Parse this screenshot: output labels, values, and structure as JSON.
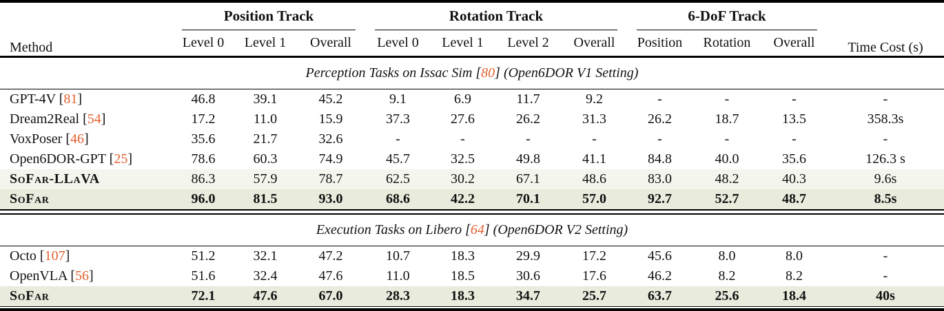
{
  "colors": {
    "citation": "#E4602F",
    "row_highlight_light": "#F4F5EC",
    "row_highlight_dark": "#E9EBDC",
    "rule": "#000000",
    "text": "#111111",
    "background": "#FFFFFF"
  },
  "header": {
    "method": "Method",
    "time_cost": "Time Cost (s)",
    "groups": [
      {
        "label": "Position Track",
        "subcols": [
          "Level 0",
          "Level 1",
          "Overall"
        ]
      },
      {
        "label": "Rotation Track",
        "subcols": [
          "Level 0",
          "Level 1",
          "Level 2",
          "Overall"
        ]
      },
      {
        "label": "6-DoF Track",
        "subcols": [
          "Position",
          "Rotation",
          "Overall"
        ]
      }
    ]
  },
  "sections": [
    {
      "title_pre": "Perception Tasks on Issac Sim [",
      "title_cite": "80",
      "title_post": "] (Open6DOR V1 Setting)",
      "rows": [
        {
          "method": "GPT-4V",
          "cite": "81",
          "smallcaps": false,
          "bold_values": false,
          "highlight": null,
          "values": [
            "46.8",
            "39.1",
            "45.2",
            "9.1",
            "6.9",
            "11.7",
            "9.2",
            "-",
            "-",
            "-",
            "-"
          ]
        },
        {
          "method": "Dream2Real",
          "cite": "54",
          "smallcaps": false,
          "bold_values": false,
          "highlight": null,
          "values": [
            "17.2",
            "11.0",
            "15.9",
            "37.3",
            "27.6",
            "26.2",
            "31.3",
            "26.2",
            "18.7",
            "13.5",
            "358.3s"
          ]
        },
        {
          "method": "VoxPoser",
          "cite": "46",
          "smallcaps": false,
          "bold_values": false,
          "highlight": null,
          "values": [
            "35.6",
            "21.7",
            "32.6",
            "-",
            "-",
            "-",
            "-",
            "-",
            "-",
            "-",
            "-"
          ]
        },
        {
          "method": "Open6DOR-GPT",
          "cite": "25",
          "smallcaps": false,
          "bold_values": false,
          "highlight": null,
          "values": [
            "78.6",
            "60.3",
            "74.9",
            "45.7",
            "32.5",
            "49.8",
            "41.1",
            "84.8",
            "40.0",
            "35.6",
            "126.3 s"
          ]
        },
        {
          "method": "SoFar-LLaVA",
          "cite": null,
          "smallcaps": true,
          "bold_values": false,
          "highlight": "light",
          "values": [
            "86.3",
            "57.9",
            "78.7",
            "62.5",
            "30.2",
            "67.1",
            "48.6",
            "83.0",
            "48.2",
            "40.3",
            "9.6s"
          ]
        },
        {
          "method": "SoFar",
          "cite": null,
          "smallcaps": true,
          "bold_values": true,
          "highlight": "dark",
          "values": [
            "96.0",
            "81.5",
            "93.0",
            "68.6",
            "42.2",
            "70.1",
            "57.0",
            "92.7",
            "52.7",
            "48.7",
            "8.5s"
          ]
        }
      ]
    },
    {
      "title_pre": "Execution Tasks on Libero [",
      "title_cite": "64",
      "title_post": "] (Open6DOR V2 Setting)",
      "rows": [
        {
          "method": "Octo",
          "cite": "107",
          "smallcaps": false,
          "bold_values": false,
          "highlight": null,
          "values": [
            "51.2",
            "32.1",
            "47.2",
            "10.7",
            "18.3",
            "29.9",
            "17.2",
            "45.6",
            "8.0",
            "8.0",
            "-"
          ]
        },
        {
          "method": "OpenVLA",
          "cite": "56",
          "smallcaps": false,
          "bold_values": false,
          "highlight": null,
          "values": [
            "51.6",
            "32.4",
            "47.6",
            "11.0",
            "18.5",
            "30.6",
            "17.6",
            "46.2",
            "8.2",
            "8.2",
            "-"
          ]
        },
        {
          "method": "SoFar",
          "cite": null,
          "smallcaps": true,
          "bold_values": true,
          "highlight": "dark",
          "values": [
            "72.1",
            "47.6",
            "67.0",
            "28.3",
            "18.3",
            "34.7",
            "25.7",
            "63.7",
            "25.6",
            "18.4",
            "40s"
          ]
        }
      ]
    }
  ]
}
